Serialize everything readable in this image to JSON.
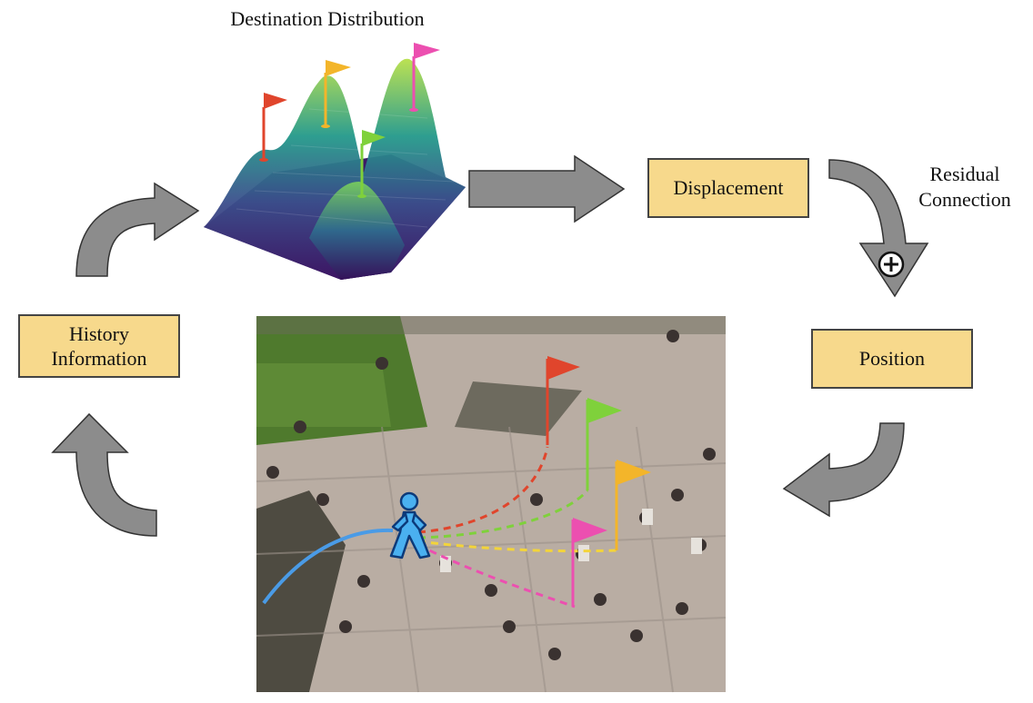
{
  "title": "Destination Distribution",
  "boxes": {
    "displacement": "Displacement",
    "position": "Position",
    "history_line1": "History",
    "history_line2": "Information"
  },
  "residual": {
    "line1": "Residual",
    "line2": "Connection"
  },
  "colors": {
    "box_fill": "#f7d98c",
    "arrow_fill": "#8c8c8c",
    "flag_red": "#e0452c",
    "flag_yellow": "#f3b52a",
    "flag_green": "#7fd13b",
    "flag_pink": "#ec4fb0",
    "history_path": "#4a9be6",
    "pedestrian": "#4ab0f0"
  },
  "icons": [
    "plus-circle-icon",
    "pedestrian-icon",
    "flag-icon"
  ]
}
